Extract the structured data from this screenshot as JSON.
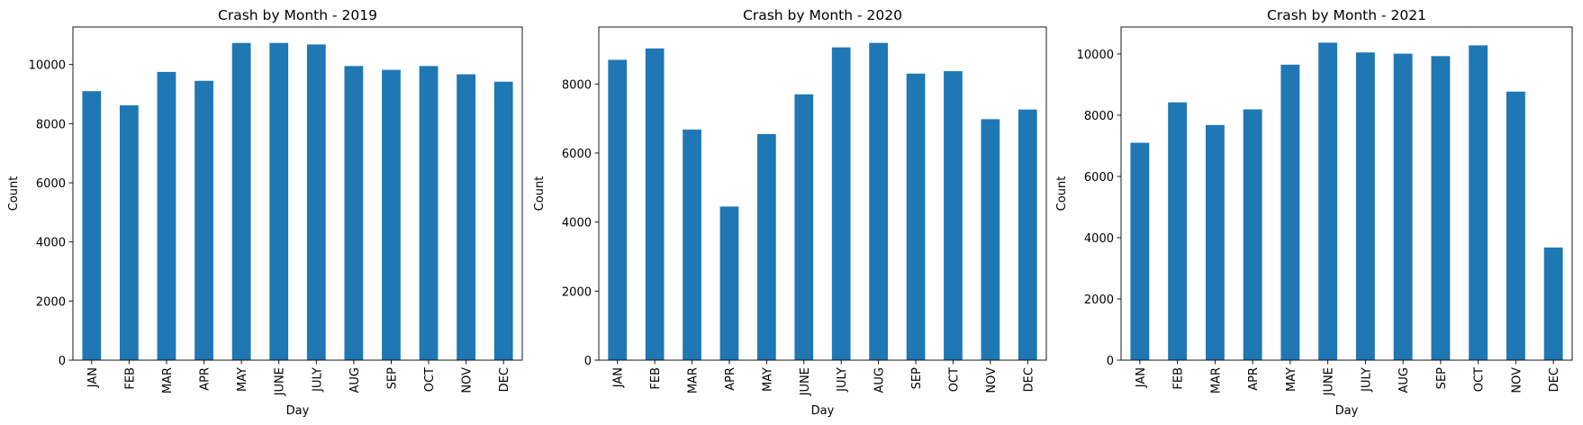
{
  "chart_data": [
    {
      "type": "bar",
      "title": "Crash by Month - 2019",
      "xlabel": "Day",
      "ylabel": "Count",
      "categories": [
        "JAN",
        "FEB",
        "MAR",
        "APR",
        "MAY",
        "JUNE",
        "JULY",
        "AUG",
        "SEP",
        "OCT",
        "NOV",
        "DEC"
      ],
      "values": [
        9100,
        8620,
        9750,
        9450,
        10730,
        10730,
        10680,
        9950,
        9820,
        9950,
        9670,
        9420
      ],
      "ylim": [
        0,
        11270
      ],
      "yticks": [
        0,
        2000,
        4000,
        6000,
        8000,
        10000
      ],
      "color": "#1f77b4",
      "grid": false,
      "legend": "none"
    },
    {
      "type": "bar",
      "title": "Crash by Month - 2020",
      "xlabel": "Day",
      "ylabel": "Count",
      "categories": [
        "JAN",
        "FEB",
        "MAR",
        "APR",
        "MAY",
        "JUNE",
        "JULY",
        "AUG",
        "SEP",
        "OCT",
        "NOV",
        "DEC"
      ],
      "values": [
        8700,
        9030,
        6680,
        4450,
        6550,
        7700,
        9060,
        9190,
        8300,
        8370,
        6980,
        7260
      ],
      "ylim": [
        0,
        9650
      ],
      "yticks": [
        0,
        2000,
        4000,
        6000,
        8000
      ],
      "color": "#1f77b4",
      "grid": false,
      "legend": "none"
    },
    {
      "type": "bar",
      "title": "Crash by Month - 2021",
      "xlabel": "Day",
      "ylabel": "Count",
      "categories": [
        "JAN",
        "FEB",
        "MAR",
        "APR",
        "MAY",
        "JUNE",
        "JULY",
        "AUG",
        "SEP",
        "OCT",
        "NOV",
        "DEC"
      ],
      "values": [
        7100,
        8420,
        7680,
        8190,
        9650,
        10370,
        10050,
        10010,
        9930,
        10280,
        8770,
        3680
      ],
      "ylim": [
        0,
        10880
      ],
      "yticks": [
        0,
        2000,
        4000,
        6000,
        8000,
        10000
      ],
      "color": "#1f77b4",
      "grid": false,
      "legend": "none"
    }
  ]
}
